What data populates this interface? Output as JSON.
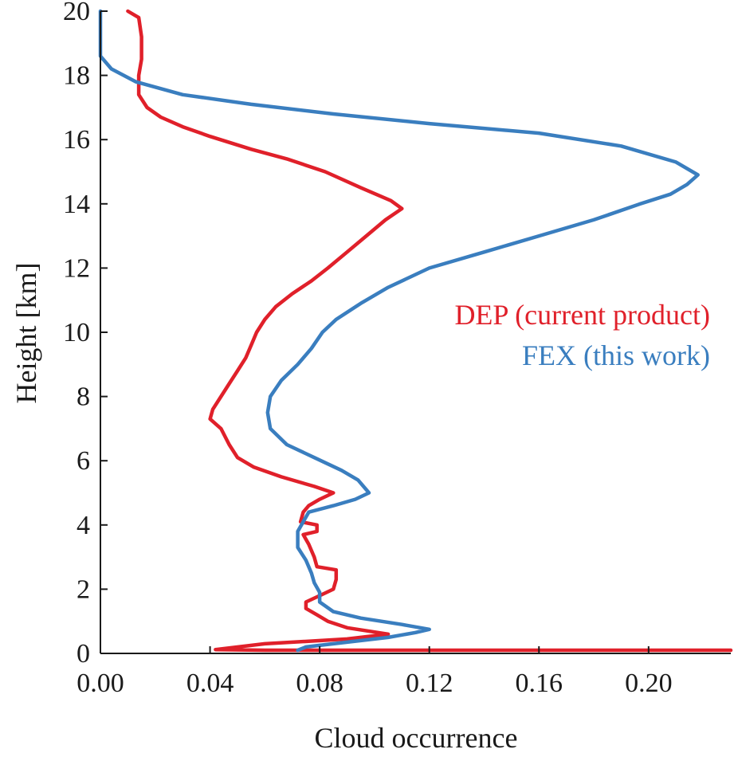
{
  "chart_data": {
    "type": "line",
    "xlabel": "Cloud occurrence",
    "ylabel": "Height [km]",
    "xlim": [
      0.0,
      0.23
    ],
    "ylim": [
      0,
      20
    ],
    "x_ticks": [
      "0.00",
      "0.04",
      "0.08",
      "0.12",
      "0.16",
      "0.20"
    ],
    "x_tick_values": [
      0.0,
      0.04,
      0.08,
      0.12,
      0.16,
      0.2
    ],
    "y_ticks": [
      "0",
      "2",
      "4",
      "6",
      "8",
      "10",
      "12",
      "14",
      "16",
      "18",
      "20"
    ],
    "y_tick_values": [
      0,
      2,
      4,
      6,
      8,
      10,
      12,
      14,
      16,
      18,
      20
    ],
    "grid": false,
    "legend_placement": "right",
    "series": [
      {
        "name": "DEP (current product)",
        "color": "#e0202a",
        "points": [
          [
            0.23,
            0.1
          ],
          [
            0.12,
            0.1
          ],
          [
            0.06,
            0.1
          ],
          [
            0.042,
            0.12
          ],
          [
            0.06,
            0.3
          ],
          [
            0.09,
            0.45
          ],
          [
            0.105,
            0.6
          ],
          [
            0.09,
            0.8
          ],
          [
            0.083,
            1.0
          ],
          [
            0.079,
            1.2
          ],
          [
            0.075,
            1.4
          ],
          [
            0.075,
            1.6
          ],
          [
            0.08,
            1.8
          ],
          [
            0.085,
            2.0
          ],
          [
            0.086,
            2.3
          ],
          [
            0.086,
            2.6
          ],
          [
            0.079,
            2.7
          ],
          [
            0.078,
            3.0
          ],
          [
            0.076,
            3.4
          ],
          [
            0.074,
            3.7
          ],
          [
            0.079,
            3.8
          ],
          [
            0.079,
            4.0
          ],
          [
            0.073,
            4.1
          ],
          [
            0.074,
            4.4
          ],
          [
            0.076,
            4.6
          ],
          [
            0.08,
            4.8
          ],
          [
            0.085,
            5.0
          ],
          [
            0.078,
            5.2
          ],
          [
            0.066,
            5.5
          ],
          [
            0.056,
            5.8
          ],
          [
            0.05,
            6.1
          ],
          [
            0.047,
            6.5
          ],
          [
            0.044,
            7.0
          ],
          [
            0.04,
            7.3
          ],
          [
            0.041,
            7.6
          ],
          [
            0.044,
            8.0
          ],
          [
            0.047,
            8.4
          ],
          [
            0.05,
            8.8
          ],
          [
            0.053,
            9.2
          ],
          [
            0.055,
            9.6
          ],
          [
            0.057,
            10.0
          ],
          [
            0.06,
            10.4
          ],
          [
            0.064,
            10.8
          ],
          [
            0.07,
            11.2
          ],
          [
            0.077,
            11.6
          ],
          [
            0.083,
            12.0
          ],
          [
            0.09,
            12.5
          ],
          [
            0.097,
            13.0
          ],
          [
            0.104,
            13.5
          ],
          [
            0.11,
            13.85
          ],
          [
            0.106,
            14.1
          ],
          [
            0.095,
            14.5
          ],
          [
            0.082,
            15.0
          ],
          [
            0.068,
            15.4
          ],
          [
            0.055,
            15.7
          ],
          [
            0.04,
            16.1
          ],
          [
            0.03,
            16.4
          ],
          [
            0.022,
            16.7
          ],
          [
            0.017,
            17.0
          ],
          [
            0.014,
            17.4
          ],
          [
            0.014,
            18.0
          ],
          [
            0.015,
            18.5
          ],
          [
            0.015,
            19.2
          ],
          [
            0.014,
            19.8
          ],
          [
            0.01,
            20.0
          ]
        ]
      },
      {
        "name": "FEX (this work)",
        "color": "#3a7ebf",
        "points": [
          [
            0.072,
            0.1
          ],
          [
            0.075,
            0.2
          ],
          [
            0.09,
            0.35
          ],
          [
            0.105,
            0.5
          ],
          [
            0.115,
            0.65
          ],
          [
            0.12,
            0.75
          ],
          [
            0.11,
            0.9
          ],
          [
            0.095,
            1.1
          ],
          [
            0.085,
            1.3
          ],
          [
            0.08,
            1.6
          ],
          [
            0.08,
            1.9
          ],
          [
            0.078,
            2.2
          ],
          [
            0.077,
            2.5
          ],
          [
            0.075,
            2.9
          ],
          [
            0.072,
            3.3
          ],
          [
            0.072,
            3.8
          ],
          [
            0.074,
            4.1
          ],
          [
            0.076,
            4.4
          ],
          [
            0.085,
            4.6
          ],
          [
            0.093,
            4.8
          ],
          [
            0.098,
            5.0
          ],
          [
            0.094,
            5.4
          ],
          [
            0.088,
            5.7
          ],
          [
            0.078,
            6.1
          ],
          [
            0.068,
            6.5
          ],
          [
            0.062,
            7.0
          ],
          [
            0.061,
            7.5
          ],
          [
            0.062,
            8.0
          ],
          [
            0.066,
            8.5
          ],
          [
            0.072,
            9.0
          ],
          [
            0.077,
            9.5
          ],
          [
            0.081,
            10.0
          ],
          [
            0.086,
            10.4
          ],
          [
            0.095,
            10.9
          ],
          [
            0.105,
            11.4
          ],
          [
            0.12,
            12.0
          ],
          [
            0.14,
            12.5
          ],
          [
            0.16,
            13.0
          ],
          [
            0.18,
            13.5
          ],
          [
            0.197,
            14.0
          ],
          [
            0.208,
            14.3
          ],
          [
            0.214,
            14.6
          ],
          [
            0.218,
            14.9
          ],
          [
            0.21,
            15.3
          ],
          [
            0.19,
            15.8
          ],
          [
            0.16,
            16.2
          ],
          [
            0.12,
            16.5
          ],
          [
            0.085,
            16.8
          ],
          [
            0.055,
            17.1
          ],
          [
            0.03,
            17.4
          ],
          [
            0.013,
            17.8
          ],
          [
            0.004,
            18.2
          ],
          [
            0.0,
            18.6
          ],
          [
            0.0,
            20.0
          ]
        ]
      }
    ]
  }
}
